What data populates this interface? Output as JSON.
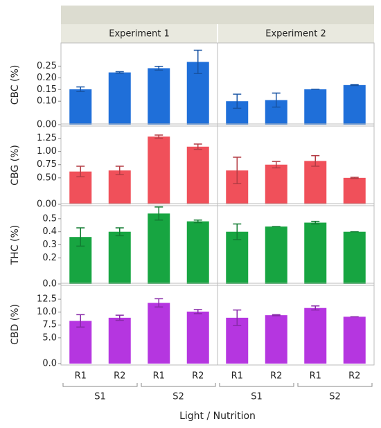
{
  "chart_data": {
    "type": "bar",
    "facets": [
      "Experiment 1",
      "Experiment 2"
    ],
    "categories": [
      "R1",
      "R2",
      "R1",
      "R2"
    ],
    "groups": [
      "S1",
      "S2"
    ],
    "xlabel": "Light / Nutrition",
    "rows": [
      {
        "ylabel": "CBC (%)",
        "color": "#1f6fd9",
        "ylim": [
          0,
          0.34
        ],
        "yticks": [
          {
            "value": 0,
            "label": "0.00"
          },
          {
            "value": 0.1,
            "label": "0.10"
          },
          0.15,
          {
            "value": 0.2,
            "label": "0.20"
          },
          0.25
        ],
        "values": [
          [
            0.151,
            0.223,
            0.241,
            0.268
          ],
          [
            0.1,
            0.105,
            0.151,
            0.169
          ]
        ],
        "errors": [
          [
            0.01,
            0.003,
            0.008,
            0.05
          ],
          [
            0.03,
            0.03,
            0,
            0.002
          ]
        ]
      },
      {
        "ylabel": "CBG (%)",
        "color": "#f0505a",
        "ylim": [
          0,
          1.48
        ],
        "yticks": [
          {
            "value": 0,
            "label": "0.00"
          },
          {
            "value": 0.5,
            "label": "0.50"
          },
          0.75,
          {
            "value": 1,
            "label": "1.00"
          },
          1.25
        ],
        "values": [
          [
            0.62,
            0.64,
            1.28,
            1.09
          ],
          [
            0.64,
            0.75,
            0.82,
            0.5
          ]
        ],
        "errors": [
          [
            0.1,
            0.08,
            0.03,
            0.05
          ],
          [
            0.25,
            0.06,
            0.1,
            0.01
          ]
        ]
      },
      {
        "ylabel": "THC (%)",
        "color": "#17a541",
        "ylim": [
          0,
          0.6
        ],
        "yticks": [
          {
            "value": 0,
            "label": "0.0"
          },
          0.2,
          0.3,
          0.4,
          0.5
        ],
        "values": [
          [
            0.36,
            0.4,
            0.54,
            0.48
          ],
          [
            0.4,
            0.44,
            0.47,
            0.4
          ]
        ],
        "errors": [
          [
            0.07,
            0.03,
            0.05,
            0.01
          ],
          [
            0.06,
            0,
            0.01,
            0
          ]
        ]
      },
      {
        "ylabel": "CBD (%)",
        "color": "#b536e0",
        "ylim": [
          0,
          15.2
        ],
        "yticks": [
          {
            "value": 0,
            "label": "0.0"
          },
          {
            "value": 5,
            "label": "5.0"
          },
          7.5,
          {
            "value": 10,
            "label": "10.0"
          },
          12.5
        ],
        "values": [
          [
            8.3,
            8.9,
            11.8,
            10.1
          ],
          [
            8.9,
            9.4,
            10.8,
            9.1
          ]
        ],
        "errors": [
          [
            1.2,
            0.5,
            0.8,
            0.4
          ],
          [
            1.5,
            0.1,
            0.4,
            0
          ]
        ]
      }
    ]
  }
}
